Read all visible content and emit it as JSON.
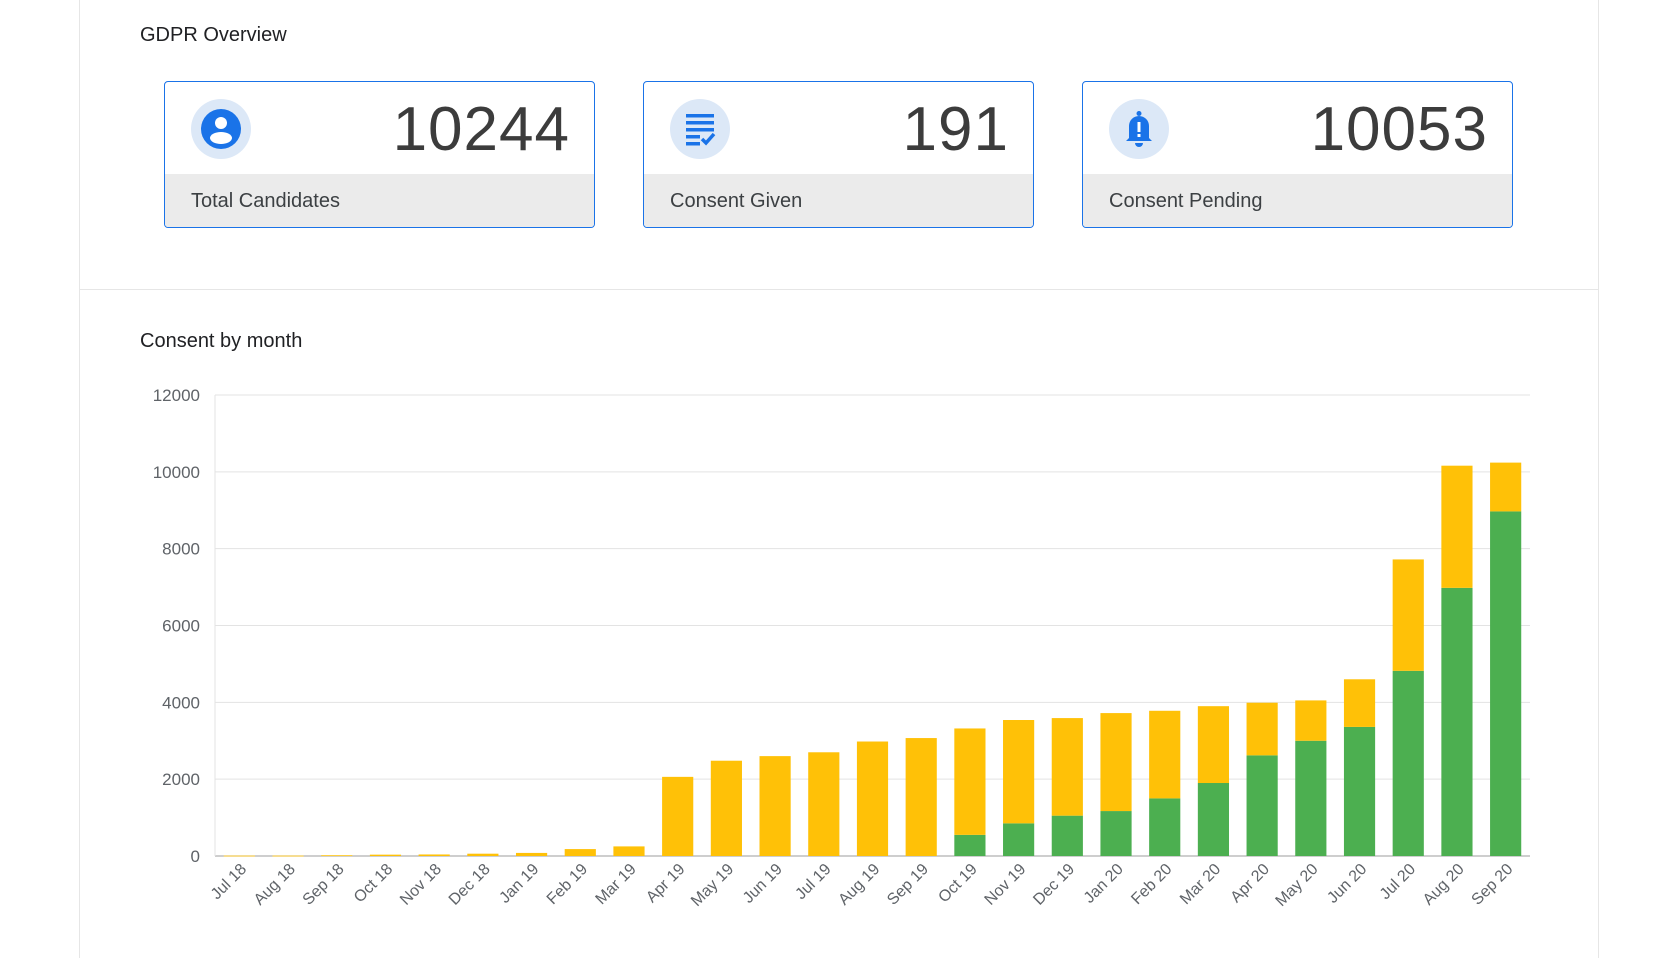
{
  "overview": {
    "title": "GDPR Overview",
    "cards": [
      {
        "value": "10244",
        "label": "Total Candidates",
        "icon": "person-icon"
      },
      {
        "value": "191",
        "label": "Consent Given",
        "icon": "checklist-icon"
      },
      {
        "value": "10053",
        "label": "Consent Pending",
        "icon": "bell-icon"
      }
    ]
  },
  "colors": {
    "accent": "#1a73e8",
    "given": "#4caf50",
    "pending": "#ffc107"
  },
  "chart_data": {
    "type": "bar",
    "stacked": true,
    "title": "Consent by month",
    "xlabel": "",
    "ylabel": "",
    "ylim": [
      0,
      12000
    ],
    "yticks": [
      0,
      2000,
      4000,
      6000,
      8000,
      10000,
      12000
    ],
    "grid": true,
    "categories": [
      "Jul 18",
      "Aug 18",
      "Sep 18",
      "Oct 18",
      "Nov 18",
      "Dec 18",
      "Jan 19",
      "Feb 19",
      "Mar 19",
      "Apr 19",
      "May 19",
      "Jun 19",
      "Jul 19",
      "Aug 19",
      "Sep 19",
      "Oct 19",
      "Nov 19",
      "Dec 19",
      "Jan 20",
      "Feb 20",
      "Mar 20",
      "Apr 20",
      "May 20",
      "Jun 20",
      "Jul 20",
      "Aug 20",
      "Sep 20"
    ],
    "series": [
      {
        "name": "Consent Given",
        "color": "#4caf50",
        "values": [
          0,
          0,
          0,
          0,
          0,
          0,
          0,
          0,
          0,
          0,
          0,
          0,
          0,
          0,
          0,
          550,
          850,
          1050,
          1170,
          1500,
          1900,
          2620,
          3000,
          3360,
          4820,
          6980,
          8970
        ]
      },
      {
        "name": "Consent Pending",
        "color": "#ffc107",
        "values": [
          10,
          10,
          20,
          35,
          40,
          60,
          80,
          180,
          250,
          2060,
          2480,
          2600,
          2700,
          2980,
          3070,
          2770,
          2690,
          2540,
          2550,
          2280,
          2000,
          1370,
          1050,
          1240,
          2900,
          3180,
          1270
        ]
      }
    ]
  }
}
